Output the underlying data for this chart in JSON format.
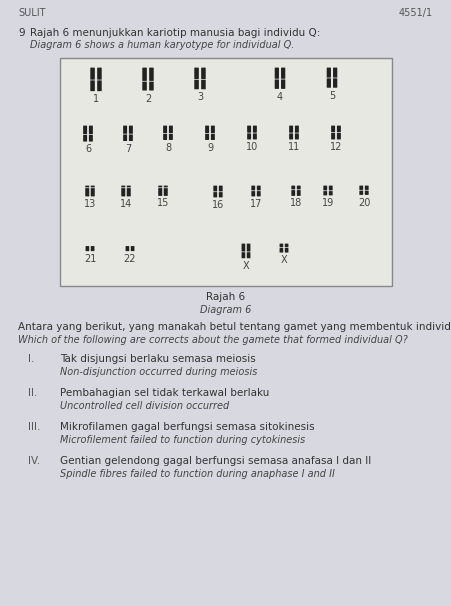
{
  "header_left": "SULIT",
  "header_right": "4551/1",
  "question_number": "9",
  "question_malay": "Rajah 6 menunjukkan kariotip manusia bagi individu Q:",
  "question_english": "Diagram 6 shows a human karyotype for individual Q.",
  "diagram_label_malay": "Rajah 6",
  "diagram_label_english": "Diagram 6",
  "question_text_malay": "Antara yang berikut, yang manakah betul tentang gamet yang membentuk individu Q?",
  "question_text_english": "Which of the following are corrects about the gamete that formed individual Q?",
  "options": [
    {
      "roman": "I.",
      "malay": "Tak disjungsi berlaku semasa meiosis",
      "english": "Non-disjunction occurred during meiosis"
    },
    {
      "roman": "II.",
      "malay": "Pembahagian sel tidak terkawal berlaku",
      "english": "Uncontrolled cell division occurred"
    },
    {
      "roman": "III.",
      "malay": "Mikrofilamen gagal berfungsi semasa sitokinesis",
      "english": "Microfilement failed to function during cytokinesis"
    },
    {
      "roman": "IV.",
      "malay": "Gentian gelendong gagal berfungsi semasa anafasa I dan II",
      "english": "Spindle fibres failed to function during anaphase I and II"
    }
  ],
  "bg_color": "#d8d8e0",
  "box_facecolor": "#e8e8e2",
  "box_edgecolor": "#888888",
  "chr_color": "#222222",
  "text_color": "#333333",
  "header_color": "#555555"
}
